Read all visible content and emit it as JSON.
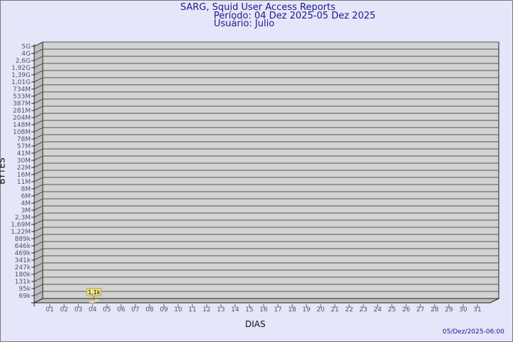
{
  "header": {
    "title": "SARG, Squid User Access Reports",
    "period": "Período: 04 Dez 2025-05 Dez 2025",
    "user": "Usuário: Julio"
  },
  "timestamp": "05/Dez/2025-06:00",
  "colors": {
    "background": "#e6e6fa",
    "plot": "#d3d3d3",
    "bar": "#ffe08a",
    "title": "#1a1a8c"
  },
  "chart_data": {
    "type": "bar",
    "xlabel": "DIAS",
    "ylabel": "BYTES",
    "grid": true,
    "y_scale": "log",
    "y_ticks": [
      "5G",
      "4G",
      "2,6G",
      "1,92G",
      "1,39G",
      "1,01G",
      "734M",
      "533M",
      "387M",
      "281M",
      "204M",
      "148M",
      "108M",
      "78M",
      "57M",
      "41M",
      "30M",
      "22M",
      "16M",
      "11M",
      "8M",
      "6M",
      "4M",
      "3M",
      "2,3M",
      "1,69M",
      "1,22M",
      "889k",
      "646k",
      "469k",
      "341k",
      "247k",
      "180k",
      "131k",
      "95k",
      "69k"
    ],
    "categories": [
      "01",
      "02",
      "03",
      "04",
      "05",
      "06",
      "07",
      "08",
      "09",
      "10",
      "11",
      "12",
      "13",
      "14",
      "15",
      "16",
      "17",
      "18",
      "19",
      "20",
      "21",
      "22",
      "23",
      "24",
      "25",
      "26",
      "27",
      "28",
      "29",
      "30",
      "31"
    ],
    "values": [
      0,
      0,
      0,
      1100,
      0,
      0,
      0,
      0,
      0,
      0,
      0,
      0,
      0,
      0,
      0,
      0,
      0,
      0,
      0,
      0,
      0,
      0,
      0,
      0,
      0,
      0,
      0,
      0,
      0,
      0,
      0
    ],
    "data_labels": [
      {
        "category": "04",
        "label": "1,1k"
      }
    ]
  }
}
